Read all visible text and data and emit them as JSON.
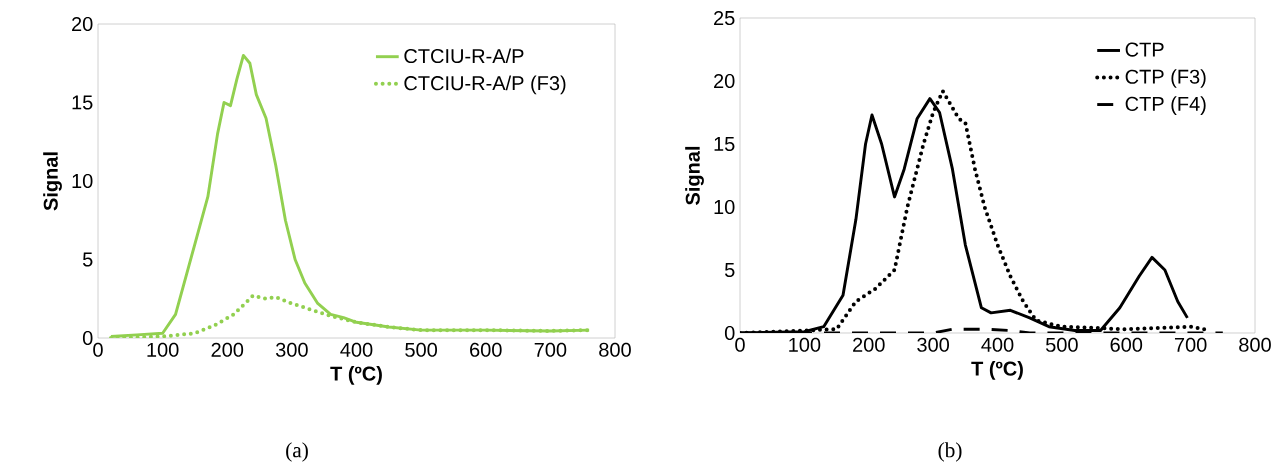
{
  "chart_data": [
    {
      "type": "line",
      "xlabel": "T (ºC)",
      "ylabel": "Signal",
      "xlim": [
        0,
        800
      ],
      "ylim": [
        0,
        20
      ],
      "xticks": [
        0,
        100,
        200,
        300,
        400,
        500,
        600,
        700,
        800
      ],
      "yticks": [
        0,
        5,
        10,
        15,
        20
      ],
      "legend": "top right",
      "marker": "none",
      "annotations": [
        "(a)"
      ],
      "series": [
        {
          "name": "CTCIU-R-A/P",
          "color": "#92d050",
          "line_style": "solid",
          "x": [
            20,
            60,
            100,
            120,
            140,
            150,
            170,
            185,
            195,
            205,
            215,
            225,
            235,
            245,
            260,
            275,
            290,
            305,
            320,
            340,
            360,
            380,
            400,
            450,
            500,
            600,
            700,
            760
          ],
          "values": [
            0.1,
            0.2,
            0.3,
            1.5,
            4.5,
            6,
            9,
            13,
            15,
            14.8,
            16.5,
            18,
            17.5,
            15.5,
            14,
            11,
            7.5,
            5,
            3.5,
            2.2,
            1.5,
            1.3,
            1.0,
            0.7,
            0.5,
            0.5,
            0.45,
            0.5
          ]
        },
        {
          "name": "CTCIU-R-A/P (F3)",
          "color": "#92d050",
          "line_style": "dotted",
          "x": [
            20,
            100,
            150,
            180,
            210,
            240,
            260,
            275,
            300,
            330,
            360,
            400,
            450,
            500,
            600,
            700,
            760
          ],
          "values": [
            0,
            0.1,
            0.3,
            0.8,
            1.5,
            2.7,
            2.5,
            2.6,
            2.2,
            1.8,
            1.4,
            1.0,
            0.7,
            0.5,
            0.5,
            0.45,
            0.5
          ]
        }
      ]
    },
    {
      "type": "line",
      "xlabel": "T (ºC)",
      "ylabel": "Signal",
      "xlim": [
        0,
        800
      ],
      "ylim": [
        0,
        25
      ],
      "xticks": [
        0,
        100,
        200,
        300,
        400,
        500,
        600,
        700,
        800
      ],
      "yticks": [
        0,
        5,
        10,
        15,
        20,
        25
      ],
      "legend": "top right",
      "marker": "none",
      "annotations": [
        "(b)"
      ],
      "series": [
        {
          "name": "CTP",
          "color": "#000000",
          "line_style": "solid",
          "x": [
            0,
            100,
            130,
            160,
            180,
            195,
            205,
            220,
            240,
            255,
            275,
            295,
            310,
            330,
            350,
            375,
            390,
            420,
            450,
            480,
            520,
            560,
            590,
            620,
            640,
            660,
            680,
            695
          ],
          "values": [
            0,
            0.1,
            0.5,
            3,
            9,
            15,
            17.3,
            15,
            10.8,
            13,
            17,
            18.6,
            17.5,
            13,
            7,
            2,
            1.6,
            1.8,
            1.2,
            0.5,
            0.2,
            0.2,
            2,
            4.5,
            6,
            5,
            2.5,
            1.2
          ]
        },
        {
          "name": "CTP (F3)",
          "color": "#000000",
          "line_style": "dotted",
          "x": [
            0,
            150,
            180,
            210,
            240,
            260,
            285,
            300,
            315,
            340,
            350,
            365,
            380,
            400,
            420,
            440,
            460,
            500,
            600,
            700,
            730
          ],
          "values": [
            0,
            0.3,
            2.5,
            3.5,
            5,
            10,
            15,
            17.5,
            19.2,
            17,
            16.7,
            13,
            10,
            7,
            4.5,
            2.5,
            1,
            0.5,
            0.3,
            0.5,
            0.2
          ]
        },
        {
          "name": "CTP (F4)",
          "color": "#000000",
          "line_style": "dashed",
          "x": [
            0,
            300,
            330,
            380,
            420,
            450,
            750
          ],
          "values": [
            0,
            0,
            0.3,
            0.3,
            0.2,
            0,
            0
          ]
        }
      ]
    }
  ]
}
